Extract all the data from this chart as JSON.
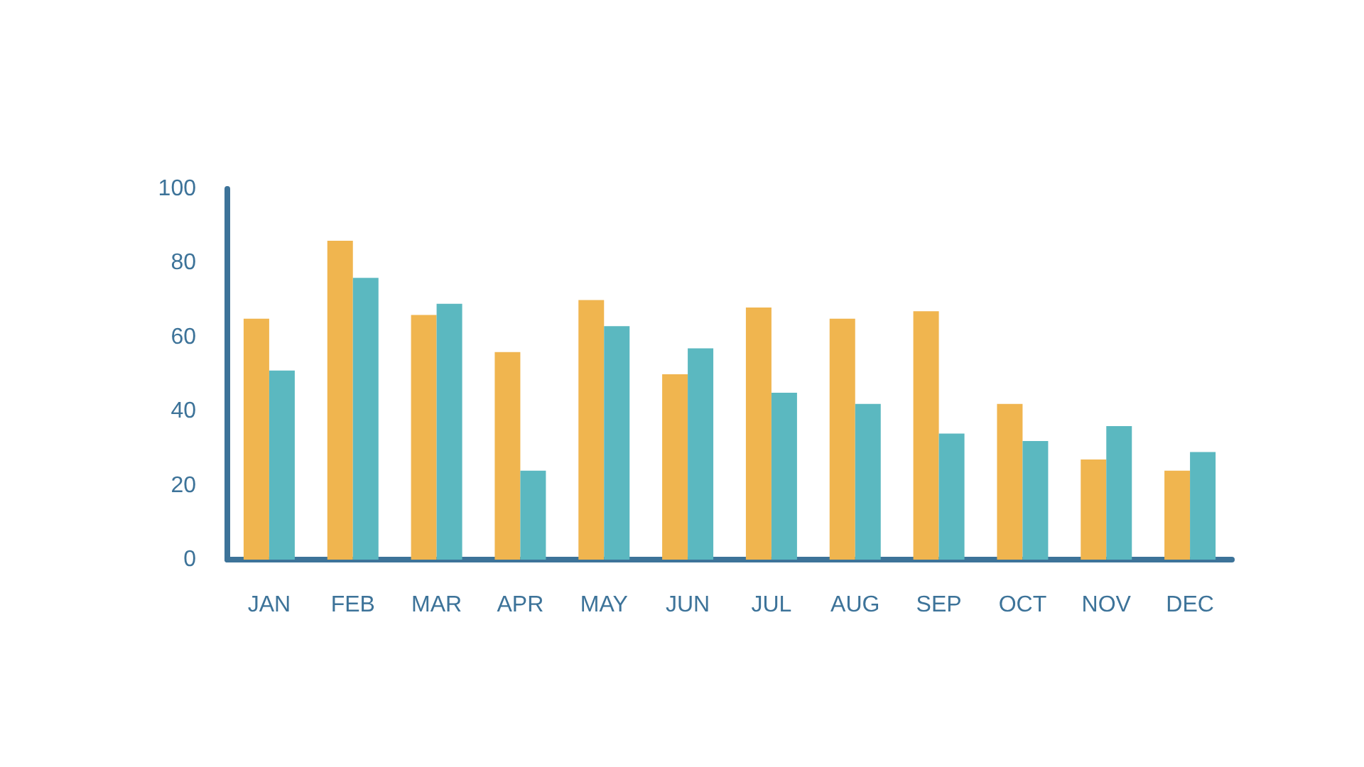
{
  "chart_data": {
    "type": "bar",
    "categories": [
      "JAN",
      "FEB",
      "MAR",
      "APR",
      "MAY",
      "JUN",
      "JUL",
      "AUG",
      "SEP",
      "OCT",
      "NOV",
      "DEC"
    ],
    "series": [
      {
        "color": "#f0b54f",
        "values": [
          65,
          86,
          66,
          56,
          70,
          50,
          68,
          65,
          67,
          42,
          27,
          24
        ]
      },
      {
        "color": "#5bb8c0",
        "values": [
          51,
          76,
          69,
          24,
          63,
          57,
          45,
          42,
          34,
          32,
          36,
          29
        ]
      }
    ],
    "ylim": [
      0,
      100
    ],
    "yticks": [
      0,
      20,
      40,
      60,
      80,
      100
    ],
    "grid": false
  }
}
